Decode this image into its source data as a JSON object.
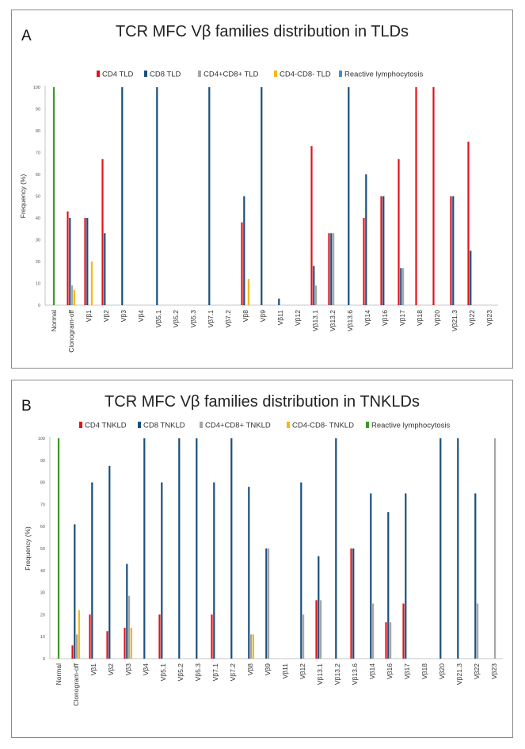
{
  "charts": [
    {
      "panel_label": "A",
      "chart_data": {
        "type": "bar",
        "title": "TCR MFC Vβ families distribution in TLDs",
        "xlabel": "",
        "ylabel": "Frequency (%)",
        "ylim": [
          0,
          100
        ],
        "yticks": [
          "0",
          "10",
          "20",
          "30",
          "40",
          "50",
          "60",
          "70",
          "80",
          "90",
          "100"
        ],
        "categories": [
          "Normal",
          "Clonogram-off",
          "Vβ1",
          "Vβ2",
          "Vβ3",
          "Vβ4",
          "Vβ5.1",
          "Vβ5.2",
          "Vβ5.3",
          "Vβ7.1",
          "Vβ7.2",
          "Vβ8",
          "Vβ9",
          "Vβ11",
          "Vβ12",
          "Vβ13.1",
          "Vβ13.2",
          "Vβ13.6",
          "Vβ14",
          "Vβ16",
          "Vβ17",
          "Vβ18",
          "Vβ20",
          "Vβ21.3",
          "Vβ22",
          "Vβ23"
        ],
        "series": [
          {
            "name": "CD4 TLD",
            "color": "#e3121b",
            "values": [
              0,
              43,
              40,
              67,
              0,
              0,
              0,
              0,
              0,
              0,
              0,
              38,
              0,
              0,
              0,
              73,
              33,
              0,
              40,
              50,
              67,
              100,
              100,
              50,
              75,
              0
            ]
          },
          {
            "name": "CD8 TLD",
            "color": "#1a4f7d",
            "values": [
              0,
              40,
              40,
              33,
              100,
              0,
              100,
              0,
              0,
              100,
              0,
              50,
              100,
              3,
              0,
              18,
              33,
              100,
              60,
              50,
              17,
              0,
              0,
              50,
              25,
              0
            ]
          },
          {
            "name": "CD4+CD8+ TLD",
            "color": "#a6a6a6",
            "values": [
              0,
              9,
              0,
              0,
              0,
              0,
              0,
              0,
              0,
              0,
              0,
              0,
              0,
              0,
              0,
              9,
              33,
              0,
              0,
              0,
              17,
              0,
              0,
              0,
              0,
              0
            ]
          },
          {
            "name": "CD4-CD8- TLD",
            "color": "#f7b718",
            "values": [
              0,
              7,
              20,
              0,
              0,
              0,
              0,
              0,
              0,
              0,
              0,
              12,
              0,
              0,
              0,
              0,
              0,
              0,
              0,
              0,
              0,
              0,
              0,
              0,
              0,
              0
            ]
          },
          {
            "name": "Reactive lymphocytosis",
            "color": "#2f95d9",
            "bar_color": "#3b9a22",
            "values": [
              100,
              0,
              0,
              0,
              0,
              0,
              0,
              0,
              0,
              0,
              0,
              0,
              0,
              0,
              0,
              0,
              0,
              0,
              0,
              0,
              0,
              0,
              0,
              0,
              0,
              0
            ]
          }
        ],
        "legend": "top-center"
      }
    },
    {
      "panel_label": "B",
      "chart_data": {
        "type": "bar",
        "title": "TCR MFC Vβ families distribution in TNKLDs",
        "xlabel": "",
        "ylabel": "Frequency (%)",
        "ylim": [
          0,
          100
        ],
        "yticks": [
          "0",
          "10",
          "20",
          "30",
          "40",
          "50",
          "60",
          "70",
          "80",
          "90",
          "100"
        ],
        "categories": [
          "Normal",
          "Clonogram-off",
          "Vβ1",
          "Vβ2",
          "Vβ3",
          "Vβ4",
          "Vβ5.1",
          "Vβ5.2",
          "Vβ5.3",
          "Vβ7.1",
          "Vβ7.2",
          "Vβ8",
          "Vβ9",
          "Vβ11",
          "Vβ12",
          "Vβ13.1",
          "Vβ13.2",
          "Vβ13.6",
          "Vβ14",
          "Vβ16",
          "Vβ17",
          "Vβ18",
          "Vβ20",
          "Vβ21.3",
          "Vβ22",
          "Vβ23"
        ],
        "series": [
          {
            "name": "CD4 TNKLD",
            "color": "#e3121b",
            "values": [
              0,
              6,
              20,
              12.5,
              14,
              0,
              20,
              0,
              0,
              20,
              0,
              0,
              0,
              0,
              0,
              26.5,
              0,
              50,
              0,
              16.5,
              25,
              0,
              0,
              0,
              0,
              0
            ]
          },
          {
            "name": "CD8 TNKLD",
            "color": "#1a4f7d",
            "values": [
              0,
              61,
              80,
              87.5,
              43,
              100,
              80,
              100,
              100,
              80,
              100,
              78,
              50,
              0,
              80,
              46.5,
              100,
              50,
              75,
              66.5,
              75,
              0,
              100,
              100,
              75,
              0
            ]
          },
          {
            "name": "CD4+CD8+ TNKLD",
            "color": "#a6a6a6",
            "values": [
              0,
              11,
              0,
              0,
              28.5,
              0,
              0,
              0,
              0,
              0,
              0,
              11,
              50,
              0,
              20,
              26.5,
              0,
              0,
              25,
              16.5,
              0,
              0,
              0,
              0,
              25,
              100
            ]
          },
          {
            "name": "CD4-CD8- TNKLD",
            "color": "#f7b718",
            "values": [
              0,
              22,
              0,
              0,
              14,
              0,
              0,
              0,
              0,
              0,
              0,
              11,
              0,
              0,
              0,
              0,
              0,
              0,
              0,
              0,
              0,
              0,
              0,
              0,
              0,
              0
            ]
          },
          {
            "name": "Reactive lymphocytosis",
            "color": "#3b9a22",
            "values": [
              100,
              0,
              0,
              0,
              0,
              0,
              0,
              0,
              0,
              0,
              0,
              0,
              0,
              0,
              0,
              0,
              0,
              0,
              0,
              0,
              0,
              0,
              0,
              0,
              0,
              0
            ]
          }
        ],
        "legend": "top-center"
      }
    }
  ]
}
